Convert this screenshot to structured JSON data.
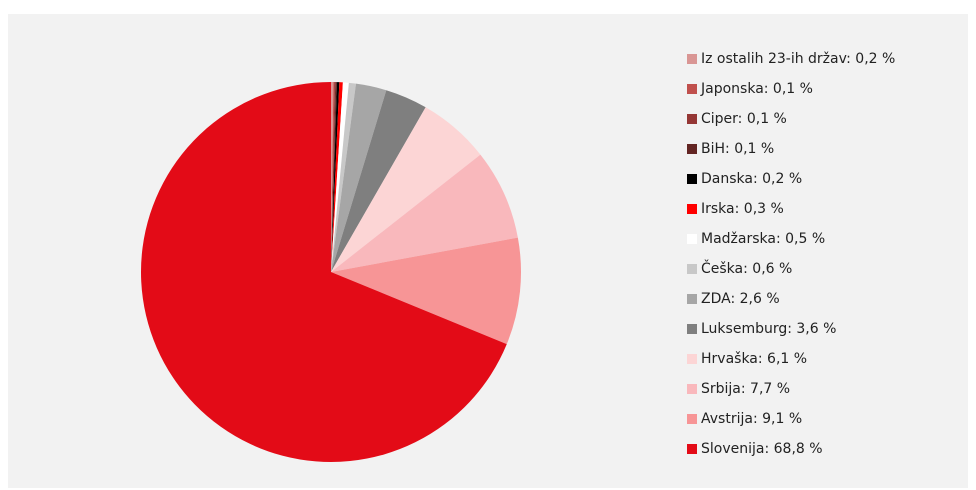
{
  "chart_data": {
    "type": "pie",
    "categories": [
      "Iz ostalih 23-ih držav: 0,2 %",
      "Japonska: 0,1 %",
      "Ciper: 0,1 %",
      "BiH: 0,1 %",
      "Danska: 0,2 %",
      "Irska: 0,3 %",
      "Madžarska: 0,5 %",
      "Češka: 0,6 %",
      "ZDA: 2,6 %",
      "Luksemburg: 3,6 %",
      "Hrvaška: 6,1 %",
      "Srbija: 7,7 %",
      "Avstrija: 9,1 %",
      "Slovenija: 68,8 %"
    ],
    "values": [
      0.2,
      0.1,
      0.1,
      0.1,
      0.2,
      0.3,
      0.5,
      0.6,
      2.6,
      3.6,
      6.1,
      7.7,
      9.1,
      68.8
    ],
    "colors": [
      "#d99694",
      "#c0504d",
      "#953735",
      "#632523",
      "#000000",
      "#ff0000",
      "#ffffff",
      "#c8c8c8",
      "#a6a6a6",
      "#7f7f7f",
      "#fcd5d5",
      "#f9b8bc",
      "#f79596",
      "#e30b17"
    ],
    "legend": "right"
  }
}
